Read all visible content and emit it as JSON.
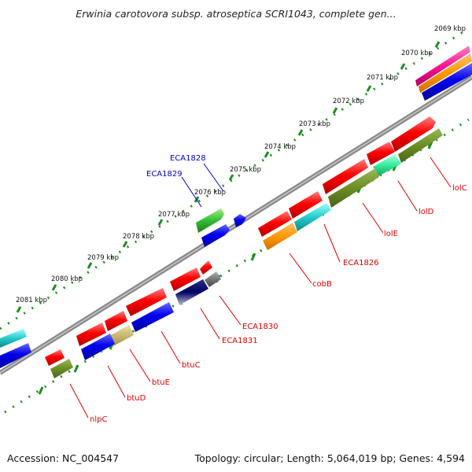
{
  "title": "Erwinia carotovora subsp. atroseptica SCRI1043, complete gen...",
  "footer": {
    "accession": "Accession: NC_004547",
    "topology": "Topology: circular; Length: 5,064,019 bp; Genes: 4,594"
  },
  "colors": {
    "backbone": "#8a8a8a",
    "tick_dots": "#1e8c1e",
    "tick_major": "#1e8c1e",
    "label_minus": "#dd0000",
    "label_plus": "#0000cc"
  },
  "kbp_labels": [
    "2069 kbp",
    "2070 kbp",
    "2071 kbp",
    "2072 kbp",
    "2073 kbp",
    "2074 kbp",
    "2075 kbp",
    "2076 kbp",
    "2077 kbp",
    "2078 kbp",
    "2079 kbp",
    "2080 kbp",
    "2081 kbp"
  ],
  "genes": [
    {
      "name": "lolC",
      "strand": "minus",
      "color": "#dd0000"
    },
    {
      "name": "lolD",
      "strand": "minus",
      "color": "#dd0000"
    },
    {
      "name": "lolE",
      "strand": "minus",
      "color": "#dd0000"
    },
    {
      "name": "ECA1826",
      "strand": "minus",
      "color": "#dd0000"
    },
    {
      "name": "cobB",
      "strand": "minus",
      "color": "#dd0000"
    },
    {
      "name": "ECA1828",
      "strand": "plus",
      "color": "#0000cc"
    },
    {
      "name": "ECA1829",
      "strand": "plus",
      "color": "#0000cc"
    },
    {
      "name": "ECA1830",
      "strand": "minus",
      "color": "#dd0000"
    },
    {
      "name": "ECA1831",
      "strand": "minus",
      "color": "#dd0000"
    },
    {
      "name": "btuC",
      "strand": "minus",
      "color": "#dd0000"
    },
    {
      "name": "btuE",
      "strand": "minus",
      "color": "#dd0000"
    },
    {
      "name": "btuD",
      "strand": "minus",
      "color": "#dd0000"
    },
    {
      "name": "nlpC",
      "strand": "minus",
      "color": "#dd0000"
    }
  ]
}
